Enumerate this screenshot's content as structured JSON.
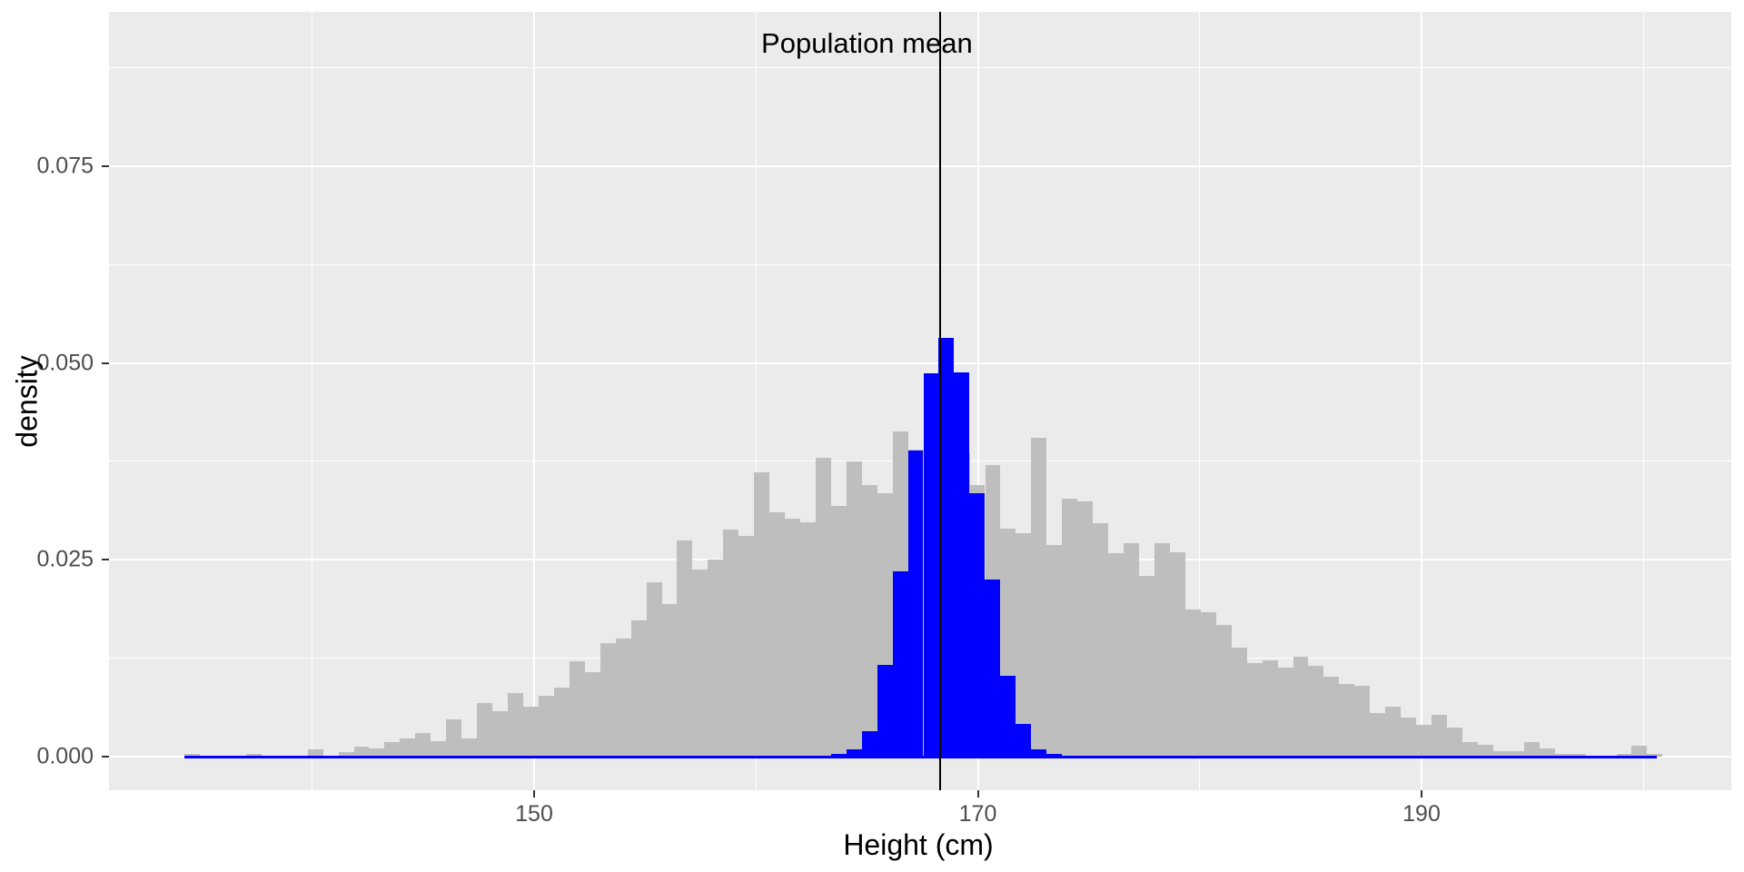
{
  "chart_data": {
    "type": "bar",
    "subtype": "overlaid-density-histograms",
    "annotation": {
      "text": "Population mean",
      "x_cm": 165.0,
      "y_density": 0.0906
    },
    "xlabel": "Height (cm)",
    "ylabel": "density",
    "x_ticks": [
      {
        "value": 150,
        "label": "150"
      },
      {
        "value": 170,
        "label": "170"
      },
      {
        "value": 190,
        "label": "190"
      }
    ],
    "x_minor": [
      140,
      160,
      180,
      200
    ],
    "y_ticks": [
      {
        "value": 0.0,
        "label": "0.000"
      },
      {
        "value": 0.025,
        "label": "0.025"
      },
      {
        "value": 0.05,
        "label": "0.050"
      },
      {
        "value": 0.075,
        "label": "0.075"
      }
    ],
    "y_minor": [
      0.0125,
      0.0375,
      0.0625,
      0.0875
    ],
    "xlim": [
      130.9,
      204.0
    ],
    "ylim": [
      0,
      0.0946
    ],
    "grid": "on",
    "vline": {
      "x_cm": 168.32,
      "color": "#000000"
    },
    "colors": {
      "panel_bg": "#EBEBEB",
      "figure_bg": "#FFFFFF",
      "gridline": "#FFFFFF",
      "population_fill": "#BEBEBE",
      "sample_means_fill": "#0000FF",
      "tick_text": "#4D4D4D",
      "tick_mark": "#333333",
      "title_text": "#000000"
    },
    "series": [
      {
        "name": "population-heights",
        "color": "#BEBEBE",
        "bin_start_cm": 134.24,
        "binwidth_cm": 0.694,
        "densities": [
          0.0004,
          0,
          0,
          0,
          0.0004,
          0,
          0,
          0,
          0.0009,
          0,
          0.0006,
          0.0013,
          0.001,
          0.0018,
          0.0023,
          0.003,
          0.002,
          0.0047,
          0.0023,
          0.0068,
          0.0058,
          0.0081,
          0.0063,
          0.0077,
          0.0088,
          0.0121,
          0.0107,
          0.0144,
          0.015,
          0.0173,
          0.0222,
          0.0194,
          0.0275,
          0.0238,
          0.025,
          0.0288,
          0.028,
          0.0361,
          0.031,
          0.0302,
          0.0298,
          0.038,
          0.0318,
          0.0375,
          0.0345,
          0.0335,
          0.0413,
          0.039,
          0.041,
          0.04,
          0.0385,
          0.0345,
          0.037,
          0.0289,
          0.0284,
          0.0405,
          0.0269,
          0.0328,
          0.0324,
          0.0296,
          0.0258,
          0.0271,
          0.023,
          0.0271,
          0.026,
          0.0187,
          0.0183,
          0.0167,
          0.0138,
          0.0119,
          0.0122,
          0.0113,
          0.0127,
          0.0115,
          0.0102,
          0.0092,
          0.009,
          0.0055,
          0.0063,
          0.005,
          0.004,
          0.0053,
          0.0037,
          0.0018,
          0.0015,
          0.0007,
          0.0007,
          0.0018,
          0.001,
          0.0003,
          0.0003,
          0,
          0,
          0.0004,
          0.0014,
          0.0004
        ]
      },
      {
        "name": "sample-means",
        "color": "#0000FF",
        "bin_start_cm": 163.38,
        "binwidth_cm": 0.694,
        "densities": [
          0.0003,
          0.0009,
          0.0032,
          0.0116,
          0.0235,
          0.0389,
          0.0487,
          0.0532,
          0.0488,
          0.0334,
          0.0225,
          0.0103,
          0.0041,
          0.0009,
          0.0003
        ]
      }
    ],
    "zero_line": {
      "color": "#0000FF",
      "x_start_cm": 134.24,
      "x_end_cm": 200.6
    }
  }
}
